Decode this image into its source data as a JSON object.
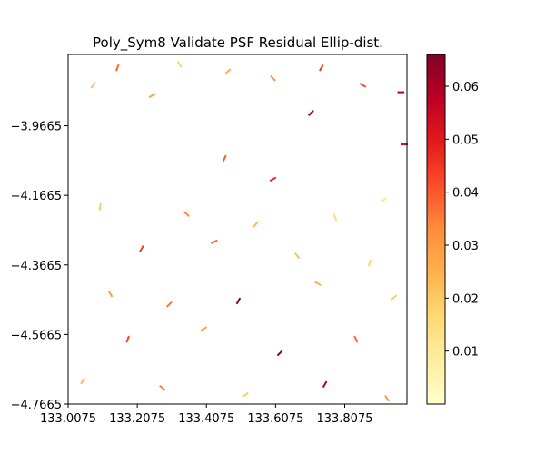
{
  "chart_data": {
    "type": "quiver",
    "title": "Poly_Sym8 Validate PSF Residual Ellip-dist.",
    "xlabel": "",
    "ylabel": "",
    "xlim": [
      133.0075,
      133.9875
    ],
    "ylim": [
      -4.7665,
      -3.7615
    ],
    "xticks": [
      133.0075,
      133.2075,
      133.4075,
      133.6075,
      133.8075
    ],
    "xtick_labels": [
      "133.0075",
      "133.2075",
      "133.4075",
      "133.6075",
      "133.8075"
    ],
    "yticks": [
      -3.9665,
      -4.1665,
      -4.3665,
      -4.5665,
      -4.7665
    ],
    "ytick_labels": [
      "−3.9665",
      "−4.1665",
      "−4.3665",
      "−4.5665",
      "−4.7665"
    ],
    "colorbar": {
      "colormap": "YlOrRd",
      "range": [
        0.0,
        0.066
      ],
      "ticks": [
        0.01,
        0.02,
        0.03,
        0.04,
        0.05,
        0.06
      ],
      "tick_labels": [
        "0.01",
        "0.02",
        "0.03",
        "0.04",
        "0.05",
        "0.06"
      ]
    },
    "grid": false,
    "segments": [
      {
        "x": 133.08,
        "y": -3.85,
        "angle": 55,
        "length": 0.02,
        "value": 0.022
      },
      {
        "x": 133.15,
        "y": -3.8,
        "angle": 70,
        "length": 0.02,
        "value": 0.038
      },
      {
        "x": 133.25,
        "y": -3.88,
        "angle": 30,
        "length": 0.02,
        "value": 0.028
      },
      {
        "x": 133.33,
        "y": -3.79,
        "angle": 120,
        "length": 0.02,
        "value": 0.018
      },
      {
        "x": 133.47,
        "y": -3.81,
        "angle": 40,
        "length": 0.02,
        "value": 0.025
      },
      {
        "x": 133.6,
        "y": -3.83,
        "angle": 135,
        "length": 0.02,
        "value": 0.031
      },
      {
        "x": 133.74,
        "y": -3.8,
        "angle": 60,
        "length": 0.02,
        "value": 0.045
      },
      {
        "x": 133.86,
        "y": -3.85,
        "angle": 150,
        "length": 0.02,
        "value": 0.042
      },
      {
        "x": 133.97,
        "y": -3.87,
        "angle": 0,
        "length": 0.02,
        "value": 0.06
      },
      {
        "x": 133.71,
        "y": -3.93,
        "angle": 45,
        "length": 0.02,
        "value": 0.062
      },
      {
        "x": 133.98,
        "y": -4.02,
        "angle": 0,
        "length": 0.02,
        "value": 0.055
      },
      {
        "x": 133.46,
        "y": -4.06,
        "angle": 65,
        "length": 0.02,
        "value": 0.04
      },
      {
        "x": 133.6,
        "y": -4.12,
        "angle": 30,
        "length": 0.02,
        "value": 0.048
      },
      {
        "x": 133.1,
        "y": -4.2,
        "angle": 80,
        "length": 0.02,
        "value": 0.02
      },
      {
        "x": 133.35,
        "y": -4.22,
        "angle": 140,
        "length": 0.02,
        "value": 0.033
      },
      {
        "x": 133.55,
        "y": -4.25,
        "angle": 50,
        "length": 0.02,
        "value": 0.024
      },
      {
        "x": 133.78,
        "y": -4.23,
        "angle": 110,
        "length": 0.02,
        "value": 0.015
      },
      {
        "x": 133.92,
        "y": -4.18,
        "angle": 35,
        "length": 0.02,
        "value": 0.012
      },
      {
        "x": 133.22,
        "y": -4.32,
        "angle": 60,
        "length": 0.02,
        "value": 0.044
      },
      {
        "x": 133.43,
        "y": -4.3,
        "angle": 25,
        "length": 0.02,
        "value": 0.039
      },
      {
        "x": 133.67,
        "y": -4.34,
        "angle": 130,
        "length": 0.02,
        "value": 0.021
      },
      {
        "x": 133.88,
        "y": -4.36,
        "angle": 70,
        "length": 0.02,
        "value": 0.017
      },
      {
        "x": 133.13,
        "y": -4.45,
        "angle": 120,
        "length": 0.02,
        "value": 0.029
      },
      {
        "x": 133.3,
        "y": -4.48,
        "angle": 45,
        "length": 0.02,
        "value": 0.036
      },
      {
        "x": 133.5,
        "y": -4.47,
        "angle": 60,
        "length": 0.02,
        "value": 0.066
      },
      {
        "x": 133.73,
        "y": -4.42,
        "angle": 150,
        "length": 0.02,
        "value": 0.026
      },
      {
        "x": 133.95,
        "y": -4.46,
        "angle": 40,
        "length": 0.02,
        "value": 0.019
      },
      {
        "x": 133.18,
        "y": -4.58,
        "angle": 70,
        "length": 0.02,
        "value": 0.043
      },
      {
        "x": 133.4,
        "y": -4.55,
        "angle": 30,
        "length": 0.02,
        "value": 0.027
      },
      {
        "x": 133.62,
        "y": -4.62,
        "angle": 45,
        "length": 0.02,
        "value": 0.064
      },
      {
        "x": 133.84,
        "y": -4.58,
        "angle": 115,
        "length": 0.02,
        "value": 0.038
      },
      {
        "x": 133.05,
        "y": -4.7,
        "angle": 55,
        "length": 0.02,
        "value": 0.024
      },
      {
        "x": 133.28,
        "y": -4.72,
        "angle": 140,
        "length": 0.02,
        "value": 0.035
      },
      {
        "x": 133.52,
        "y": -4.74,
        "angle": 35,
        "length": 0.02,
        "value": 0.02
      },
      {
        "x": 133.75,
        "y": -4.71,
        "angle": 60,
        "length": 0.02,
        "value": 0.058
      },
      {
        "x": 133.93,
        "y": -4.75,
        "angle": 125,
        "length": 0.02,
        "value": 0.03
      }
    ]
  }
}
